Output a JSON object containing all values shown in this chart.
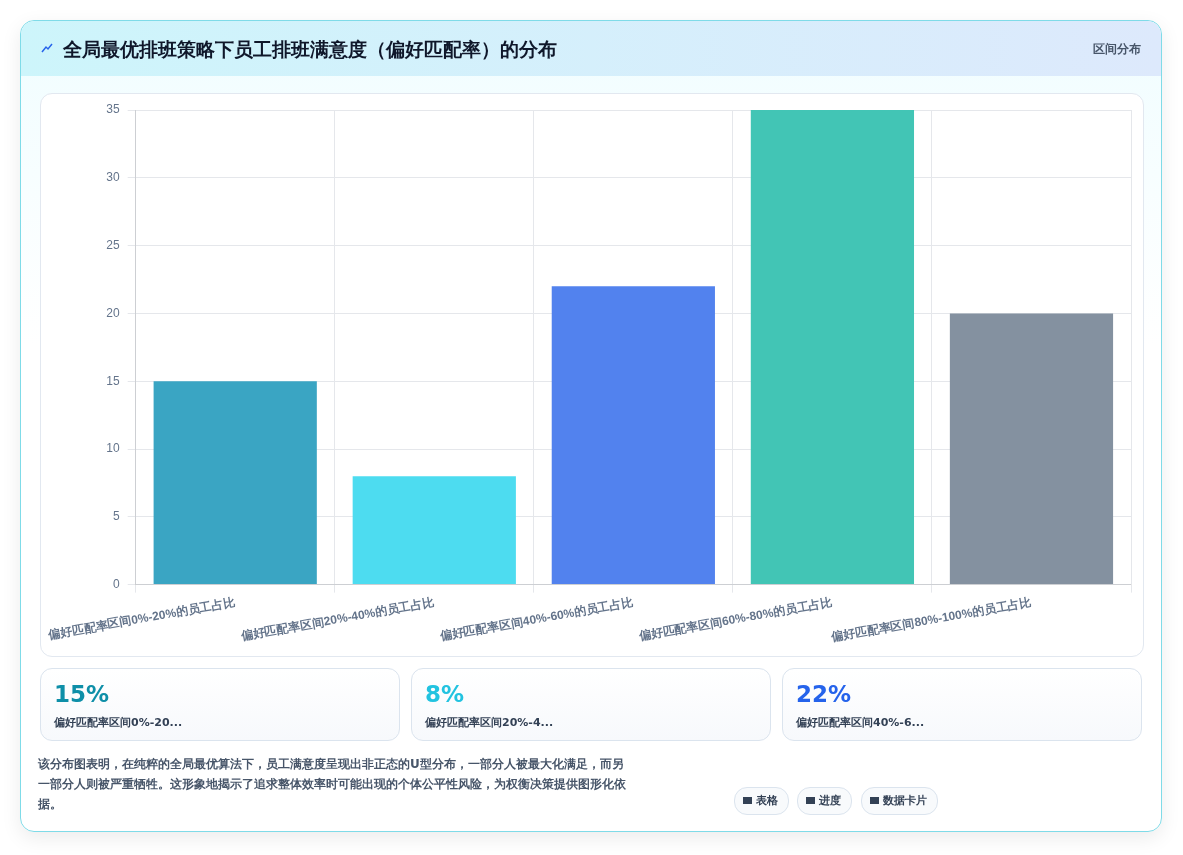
{
  "chart_data": {
    "type": "bar",
    "title": "全局最优排班策略下员工排班满意度（偏好匹配率）的分布",
    "subtitle": "区间分布",
    "categories": [
      "偏好匹配率区间0%-20%的员工占比",
      "偏好匹配率区间20%-40%的员工占比",
      "偏好匹配率区间40%-60%的员工占比",
      "偏好匹配率区间60%-80%的员工占比",
      "偏好匹配率区间80%-100%的员工占比"
    ],
    "values": [
      15,
      8,
      22,
      35,
      20
    ],
    "colors": [
      "#3aa5c3",
      "#4ddcf0",
      "#5282ee",
      "#42c5b5",
      "#8491a0"
    ],
    "ylim": [
      0,
      35
    ],
    "yticks": [
      0,
      5,
      10,
      15,
      20,
      25,
      30,
      35
    ],
    "grid": true,
    "legend": false,
    "annotations": [
      "15%",
      "偏好匹配率区间0%-20...",
      "8%",
      "偏好匹配率区间20%-4...",
      "22%",
      "偏好匹配率区间40%-6...",
      "该分布图表明，在纯粹的全局最优算法下，员工满意度呈现出非正态的U型分布，一部分人被最大化满足，而另一部分人则被严重牺牲。这形象地揭示了追求整体效率时可能出现的个体公平性风险，为权衡决策提供图形化依据。",
      "表格",
      "进度",
      "数据卡片"
    ]
  }
}
